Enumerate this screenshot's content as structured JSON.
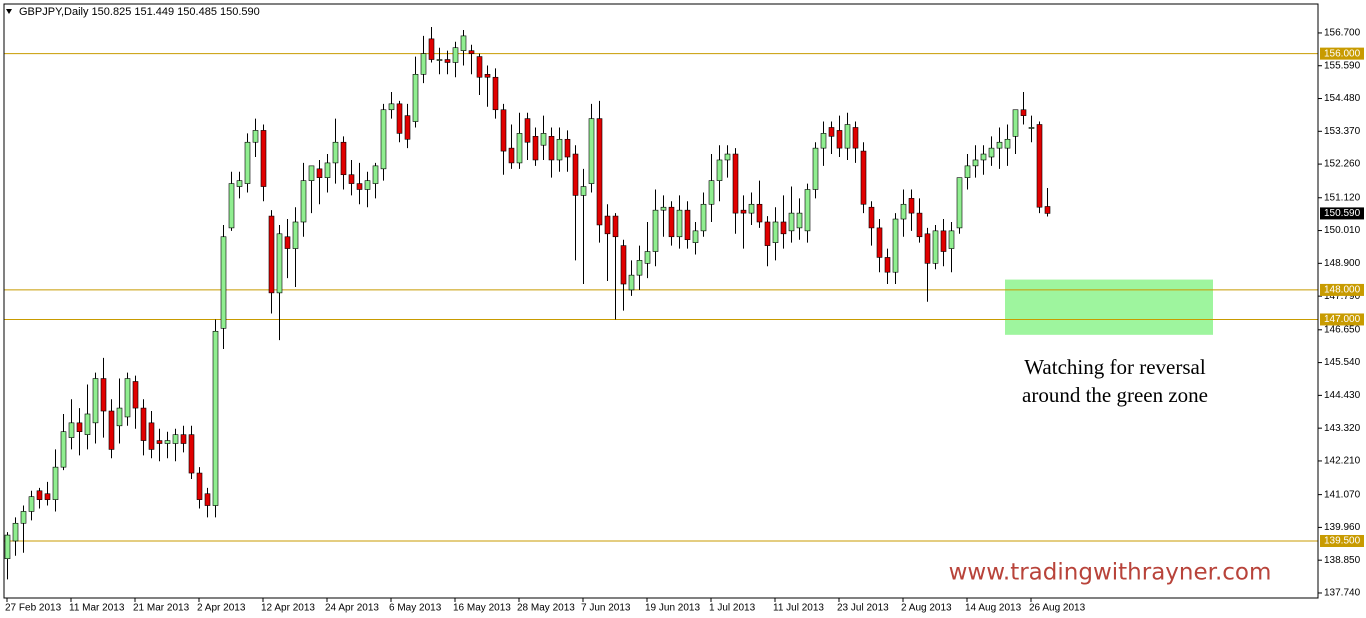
{
  "chart_data": {
    "type": "candlestick",
    "title": "GBPJPY,Daily 150.825 151.449 150.485 150.590",
    "categories": [
      "27 Feb 2013",
      null,
      null,
      null,
      null,
      null,
      null,
      null,
      "11 Mar 2013",
      null,
      null,
      null,
      null,
      null,
      null,
      null,
      "21 Mar 2013",
      null,
      null,
      null,
      null,
      null,
      null,
      null,
      "2 Apr 2013",
      null,
      null,
      null,
      null,
      null,
      null,
      null,
      "12 Apr 2013",
      null,
      null,
      null,
      null,
      null,
      null,
      null,
      "24 Apr 2013",
      null,
      null,
      null,
      null,
      null,
      null,
      null,
      "6 May 2013",
      null,
      null,
      null,
      null,
      null,
      null,
      null,
      "16 May 2013",
      null,
      null,
      null,
      null,
      null,
      null,
      null,
      "28 May 2013",
      null,
      null,
      null,
      null,
      null,
      null,
      null,
      "7 Jun 2013",
      null,
      null,
      null,
      null,
      null,
      null,
      null,
      "19 Jun 2013",
      null,
      null,
      null,
      null,
      null,
      null,
      null,
      "1 Jul 2013",
      null,
      null,
      null,
      null,
      null,
      null,
      null,
      "11 Jul 2013",
      null,
      null,
      null,
      null,
      null,
      null,
      null,
      "23 Jul 2013",
      null,
      null,
      null,
      null,
      null,
      null,
      null,
      "2 Aug 2013",
      null,
      null,
      null,
      null,
      null,
      null,
      null,
      "14 Aug 2013",
      null,
      null,
      null,
      null,
      null,
      null,
      null,
      "26 Aug 2013",
      null,
      null
    ],
    "open": [
      138.9,
      139.5,
      140.1,
      140.5,
      141.2,
      141.1,
      140.9,
      142.0,
      143.0,
      143.5,
      143.1,
      143.5,
      145.0,
      143.9,
      143.4,
      143.7,
      144.9,
      144.0,
      143.5,
      142.9,
      142.8,
      142.8,
      143.1,
      143.1,
      141.8,
      141.1,
      140.7,
      146.7,
      150.1,
      151.5,
      151.6,
      153.0,
      153.4,
      150.5,
      147.9,
      149.8,
      149.4,
      150.3,
      151.7,
      152.1,
      151.8,
      152.3,
      153.0,
      151.9,
      151.6,
      151.4,
      151.6,
      152.1,
      154.1,
      154.3,
      153.9,
      153.7,
      155.3,
      156.5,
      155.8,
      155.8,
      155.7,
      156.1,
      156.1,
      155.9,
      155.3,
      155.2,
      154.1,
      152.8,
      152.3,
      153.8,
      153.2,
      152.9,
      153.2,
      152.4,
      153.1,
      152.6,
      151.2,
      151.6,
      153.8,
      150.5,
      150.5,
      149.5,
      148.0,
      148.5,
      148.9,
      149.3,
      150.7,
      150.8,
      149.8,
      150.7,
      149.6,
      150.0,
      150.9,
      151.7,
      152.4,
      152.6,
      150.7,
      150.6,
      150.9,
      150.3,
      149.6,
      150.3,
      150.0,
      150.1,
      150.0,
      151.4,
      152.8,
      153.5,
      153.4,
      152.8,
      153.5,
      152.7,
      150.8,
      150.1,
      149.1,
      148.6,
      150.4,
      151.1,
      150.6,
      149.9,
      148.9,
      150.0,
      149.4,
      150.1,
      151.8,
      152.2,
      152.4,
      152.5,
      152.8,
      152.8,
      153.2,
      154.1,
      153.5,
      153.6,
      150.825
    ],
    "high": [
      139.8,
      140.3,
      140.7,
      141.2,
      141.3,
      141.5,
      142.6,
      143.8,
      144.3,
      144.0,
      144.8,
      145.2,
      145.7,
      144.3,
      145.0,
      145.2,
      145.1,
      144.3,
      143.9,
      143.3,
      143.2,
      143.3,
      143.4,
      143.4,
      142.0,
      141.3,
      147.0,
      150.2,
      152.0,
      152.0,
      153.3,
      153.8,
      153.6,
      150.7,
      150.2,
      150.4,
      150.8,
      152.3,
      152.2,
      152.4,
      152.6,
      153.8,
      153.2,
      152.4,
      152.3,
      152.0,
      152.3,
      154.3,
      154.7,
      154.4,
      154.3,
      155.9,
      156.6,
      156.9,
      156.2,
      156.1,
      156.4,
      156.8,
      156.3,
      156.0,
      155.6,
      155.5,
      154.3,
      153.6,
      154.0,
      154.0,
      153.5,
      153.9,
      153.5,
      153.5,
      153.4,
      152.9,
      152.1,
      154.3,
      154.4,
      150.9,
      150.6,
      149.7,
      149.0,
      149.5,
      150.3,
      151.4,
      151.2,
      151.0,
      151.2,
      151.0,
      150.3,
      151.3,
      152.6,
      152.9,
      152.9,
      152.8,
      151.2,
      151.3,
      151.7,
      150.5,
      150.8,
      151.2,
      151.5,
      151.1,
      151.6,
      153.0,
      153.7,
      153.7,
      153.9,
      154.0,
      153.7,
      153.0,
      151.0,
      150.4,
      149.4,
      150.6,
      151.4,
      151.4,
      151.1,
      150.1,
      150.2,
      150.4,
      150.3,
      151.8,
      152.6,
      152.9,
      152.9,
      153.2,
      153.5,
      153.6,
      154.1,
      154.7,
      153.9,
      153.7,
      151.449
    ],
    "low": [
      138.2,
      139.0,
      139.1,
      140.2,
      140.6,
      140.7,
      140.5,
      141.9,
      142.6,
      142.4,
      142.6,
      142.8,
      143.0,
      142.3,
      142.8,
      143.4,
      143.3,
      142.4,
      142.3,
      142.2,
      142.3,
      142.2,
      142.5,
      141.6,
      140.6,
      140.3,
      140.3,
      146.0,
      150.0,
      151.1,
      151.3,
      152.5,
      151.0,
      147.2,
      146.3,
      148.4,
      148.1,
      149.8,
      150.6,
      150.9,
      151.3,
      151.6,
      151.4,
      151.2,
      150.9,
      150.8,
      151.1,
      151.7,
      153.8,
      153.0,
      152.8,
      153.5,
      155.0,
      155.7,
      155.3,
      155.3,
      155.2,
      155.6,
      155.3,
      154.6,
      154.2,
      153.8,
      151.9,
      152.1,
      152.1,
      152.4,
      152.2,
      152.4,
      151.8,
      152.0,
      152.0,
      149.0,
      148.2,
      151.3,
      149.6,
      148.3,
      147.0,
      147.3,
      147.8,
      148.0,
      148.4,
      148.8,
      149.8,
      149.5,
      149.4,
      149.4,
      149.2,
      149.8,
      150.3,
      151.0,
      151.8,
      149.9,
      149.4,
      150.2,
      150.1,
      148.8,
      149.0,
      149.4,
      149.6,
      149.7,
      149.6,
      151.1,
      152.2,
      152.6,
      152.5,
      152.4,
      152.3,
      150.6,
      149.5,
      148.6,
      148.2,
      148.2,
      149.8,
      150.0,
      149.6,
      147.6,
      148.7,
      148.8,
      148.6,
      149.9,
      151.4,
      151.8,
      151.9,
      152.2,
      152.1,
      152.2,
      152.6,
      153.6,
      153.0,
      150.6,
      150.485
    ],
    "close": [
      139.7,
      140.1,
      140.5,
      141.0,
      140.9,
      140.9,
      142.0,
      143.2,
      143.5,
      143.2,
      143.8,
      145.0,
      143.9,
      142.6,
      144.0,
      145.0,
      144.0,
      142.9,
      142.6,
      142.8,
      142.9,
      143.1,
      142.8,
      141.8,
      140.9,
      140.7,
      146.6,
      149.8,
      151.6,
      151.7,
      153.0,
      153.4,
      151.5,
      147.9,
      149.9,
      149.4,
      150.3,
      151.7,
      152.2,
      151.8,
      152.3,
      153.0,
      151.9,
      151.6,
      151.4,
      151.7,
      152.2,
      154.1,
      154.3,
      153.3,
      153.1,
      155.3,
      156.0,
      155.8,
      155.8,
      155.7,
      156.2,
      156.6,
      156.0,
      155.2,
      155.2,
      154.1,
      152.7,
      152.3,
      153.3,
      153.0,
      152.4,
      153.3,
      152.4,
      153.1,
      152.5,
      151.2,
      151.5,
      153.8,
      150.2,
      149.9,
      149.8,
      148.2,
      148.5,
      149.0,
      149.3,
      150.7,
      150.8,
      149.8,
      150.7,
      149.7,
      150.0,
      150.9,
      151.7,
      152.4,
      152.6,
      150.6,
      150.6,
      150.9,
      150.3,
      149.5,
      150.3,
      149.9,
      150.6,
      150.6,
      151.4,
      152.8,
      153.3,
      153.2,
      152.8,
      153.6,
      152.8,
      150.9,
      150.1,
      149.1,
      148.6,
      150.4,
      150.9,
      150.6,
      149.8,
      148.9,
      150.0,
      149.3,
      150.0,
      151.8,
      152.2,
      152.4,
      152.6,
      152.8,
      153.0,
      153.1,
      154.1,
      153.9,
      153.5,
      150.8,
      150.59
    ],
    "up_color": "#90ee90",
    "down_color": "#e00000",
    "ylim": [
      137.57,
      157.68
    ],
    "yticks": [
      {
        "value": 156.7,
        "label": "156.700"
      },
      {
        "value": 155.59,
        "label": "155.590"
      },
      {
        "value": 154.48,
        "label": "154.480"
      },
      {
        "value": 153.37,
        "label": "153.370"
      },
      {
        "value": 152.26,
        "label": "152.260"
      },
      {
        "value": 151.12,
        "label": "151.120"
      },
      {
        "value": 150.01,
        "label": "150.010"
      },
      {
        "value": 148.9,
        "label": "148.900"
      },
      {
        "value": 147.79,
        "label": "147.790"
      },
      {
        "value": 146.65,
        "label": "146.650"
      },
      {
        "value": 145.54,
        "label": "145.540"
      },
      {
        "value": 144.43,
        "label": "144.430"
      },
      {
        "value": 143.32,
        "label": "143.320"
      },
      {
        "value": 142.21,
        "label": "142.210"
      },
      {
        "value": 141.07,
        "label": "141.070"
      },
      {
        "value": 139.96,
        "label": "139.960"
      },
      {
        "value": 138.85,
        "label": "138.850"
      },
      {
        "value": 137.74,
        "label": "137.740"
      }
    ],
    "levels": [
      {
        "value": 156,
        "label": "156.000"
      },
      {
        "value": 148,
        "label": "148.000"
      },
      {
        "value": 147,
        "label": "147.000"
      },
      {
        "value": 139.5,
        "label": "139.500"
      }
    ],
    "level_color": "#c89b00",
    "last_price": {
      "value": 150.59,
      "label": "150.590"
    },
    "zone": {
      "low": 146.48,
      "high": 148.35,
      "color": "#9ef59e"
    },
    "annotation": [
      "Watching for reversal",
      "around the green zone"
    ],
    "watermark": "www.tradingwithrayner.com"
  }
}
